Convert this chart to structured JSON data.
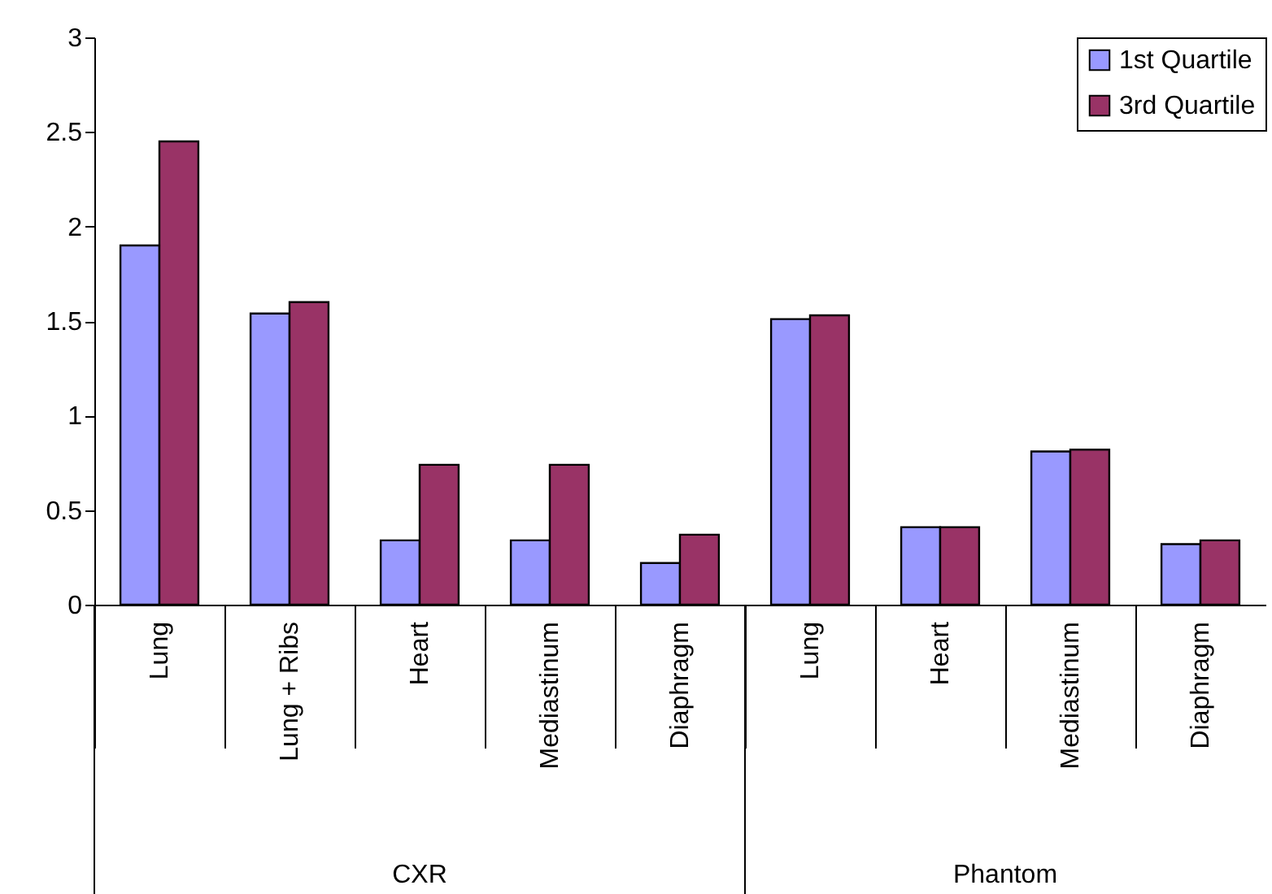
{
  "chart_data": {
    "type": "bar",
    "categories": [
      "Lung",
      "Lung + Ribs",
      "Heart",
      "Mediastinum",
      "Diaphragm",
      "Lung",
      "Heart",
      "Mediastinum",
      "Diaphragm"
    ],
    "series": [
      {
        "name": "1st Quartile",
        "color": "#9999ff",
        "values": [
          1.9,
          1.54,
          0.34,
          0.34,
          0.22,
          1.51,
          0.41,
          0.81,
          0.32
        ]
      },
      {
        "name": "3rd Quartile",
        "color": "#993366",
        "values": [
          2.45,
          1.6,
          0.74,
          0.74,
          0.37,
          1.53,
          0.41,
          0.82,
          0.34
        ]
      }
    ],
    "ylim": [
      0,
      3
    ],
    "yticks": [
      0,
      0.5,
      1,
      1.5,
      2,
      2.5,
      3
    ],
    "annotations": [
      "CXR",
      "Phantom"
    ],
    "grid": false,
    "legend": "top right"
  }
}
